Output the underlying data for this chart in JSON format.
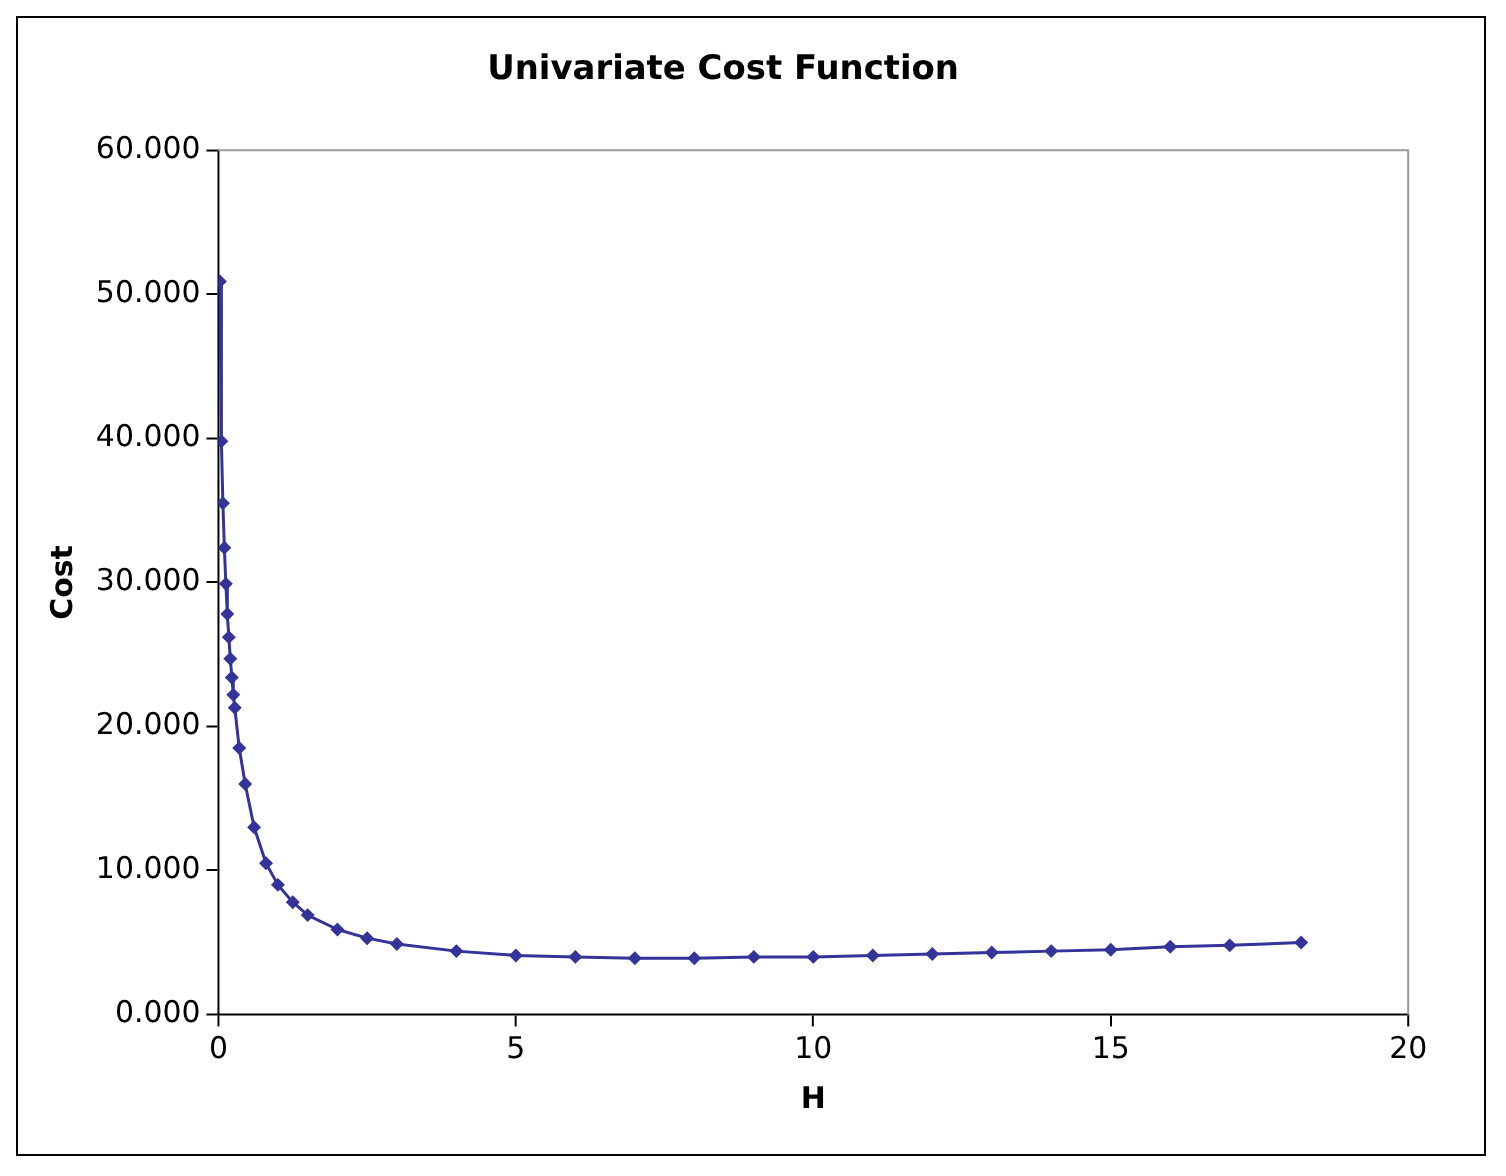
{
  "chart_data": {
    "type": "line",
    "title": "Univariate Cost Function",
    "xlabel": "H",
    "ylabel": "Cost",
    "x": [
      0.025,
      0.05,
      0.075,
      0.1,
      0.125,
      0.15,
      0.175,
      0.2,
      0.225,
      0.25,
      0.275,
      0.35,
      0.45,
      0.6,
      0.8,
      1.0,
      1.25,
      1.5,
      2,
      2.5,
      3,
      4,
      5,
      6,
      7,
      8,
      9,
      10,
      11,
      12,
      13,
      14,
      15,
      16,
      17,
      18.2
    ],
    "series": [
      {
        "color": "#333399",
        "values": [
          50.9,
          39.8,
          35.5,
          32.4,
          29.9,
          27.8,
          26.2,
          24.7,
          23.4,
          22.2,
          21.3,
          18.5,
          16,
          13,
          10.5,
          9,
          7.8,
          6.9,
          5.9,
          5.3,
          4.9,
          4.4,
          4.1,
          4.0,
          3.9,
          3.9,
          4.0,
          4.0,
          4.1,
          4.2,
          4.3,
          4.4,
          4.5,
          4.7,
          4.8,
          5.0
        ]
      }
    ],
    "xlim": [
      0,
      20
    ],
    "xticks": [
      0,
      5,
      10,
      15,
      20
    ],
    "ylim": [
      0,
      60
    ],
    "yticks": [
      {
        "value": 0,
        "label": "0.000"
      },
      {
        "value": 10,
        "label": "10.000"
      },
      {
        "value": 20,
        "label": "20.000"
      },
      {
        "value": 30,
        "label": "30.000"
      },
      {
        "value": 40,
        "label": "40.000"
      },
      {
        "value": 50,
        "label": "50.000"
      },
      {
        "value": 60,
        "label": "60.000"
      }
    ],
    "grid": false,
    "legend": false,
    "marker": "diamond",
    "line_style": "solid"
  }
}
